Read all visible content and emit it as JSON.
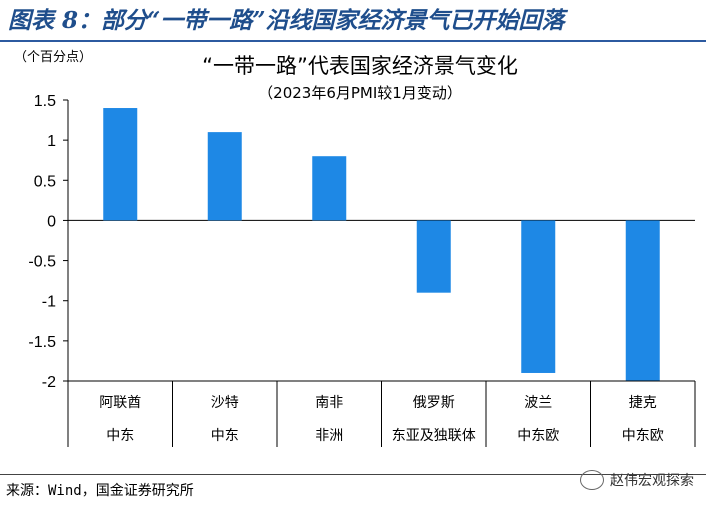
{
  "figure_title": "图表 8：部分“一带一路”沿线国家经济景气已开始回落",
  "source": "来源：Wind，国金证券研究所",
  "watermark": "赵伟宏观探索",
  "chart_data": {
    "type": "bar",
    "title": "“一带一路”代表国家经济景气变化",
    "subtitle": "（2023年6月PMI较1月变动）",
    "ylabel": "（个百分点）",
    "ylim": [
      -2,
      1.5
    ],
    "yticks": [
      1.5,
      1,
      0.5,
      0,
      -0.5,
      -1,
      -1.5,
      -2
    ],
    "categories": [
      "阿联酋",
      "沙特",
      "南非",
      "俄罗斯",
      "波兰",
      "捷克"
    ],
    "regions": [
      "中东",
      "中东",
      "非洲",
      "东亚及独联体",
      "中东欧",
      "中东欧"
    ],
    "values": [
      1.4,
      1.1,
      0.8,
      -0.9,
      -1.9,
      -2.0
    ],
    "bar_color": "#1e88e5",
    "grid": false
  }
}
